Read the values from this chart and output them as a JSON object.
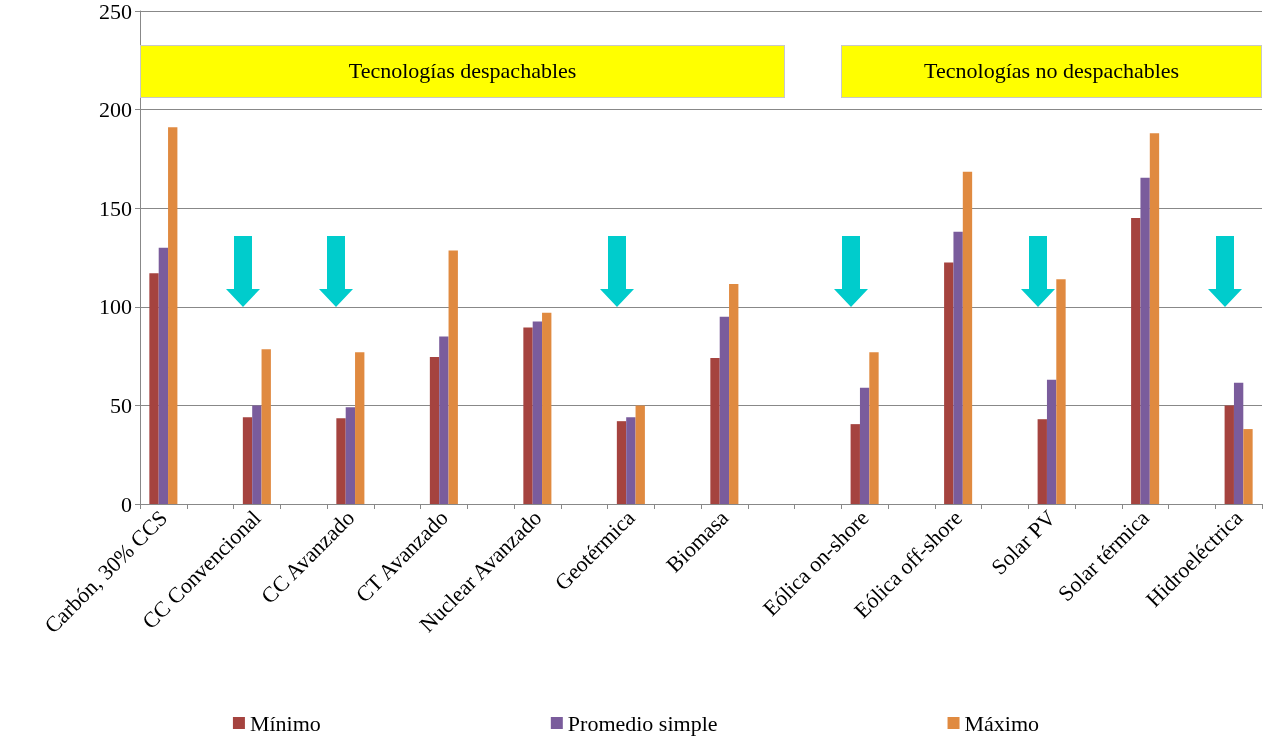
{
  "chart_data": {
    "type": "bar",
    "categories": [
      "Carbón, 30% CCS",
      null,
      "CC Convencional",
      null,
      "CC Avanzado",
      null,
      "CT Avanzado",
      null,
      "Nuclear Avanzado",
      null,
      "Geotérmica",
      null,
      "Biomasa",
      null,
      null,
      "Eólica on-shore",
      null,
      "Eólica off-shore",
      null,
      "Solar PV",
      null,
      "Solar térmica",
      null,
      "Hidroeléctrica"
    ],
    "series": [
      {
        "name": "Mínimo",
        "color": "#a5433f",
        "values": [
          117,
          null,
          44,
          null,
          43.5,
          null,
          74.5,
          null,
          89.5,
          null,
          42,
          null,
          74,
          null,
          null,
          40.5,
          null,
          122.5,
          null,
          43,
          null,
          145,
          null,
          50
        ]
      },
      {
        "name": "Promedio simple",
        "color": "#7a5c9c",
        "values": [
          130,
          null,
          50,
          null,
          49,
          null,
          85,
          null,
          92.5,
          null,
          44,
          null,
          95,
          null,
          null,
          59,
          null,
          138,
          null,
          63,
          null,
          165.5,
          null,
          61.5
        ]
      },
      {
        "name": "Máximo",
        "color": "#e08a40",
        "values": [
          191,
          null,
          78.5,
          null,
          77,
          null,
          128.5,
          null,
          97,
          null,
          50,
          null,
          111.5,
          null,
          null,
          77,
          null,
          168.5,
          null,
          114,
          null,
          188,
          null,
          38
        ]
      }
    ],
    "ylim": [
      0,
      250
    ],
    "yticks": [
      0,
      50,
      100,
      150,
      200,
      250
    ],
    "grid": "y",
    "legend": "bottom",
    "annotations": [
      "Tecnologías despachables",
      "Tecnologías no despachables"
    ]
  }
}
